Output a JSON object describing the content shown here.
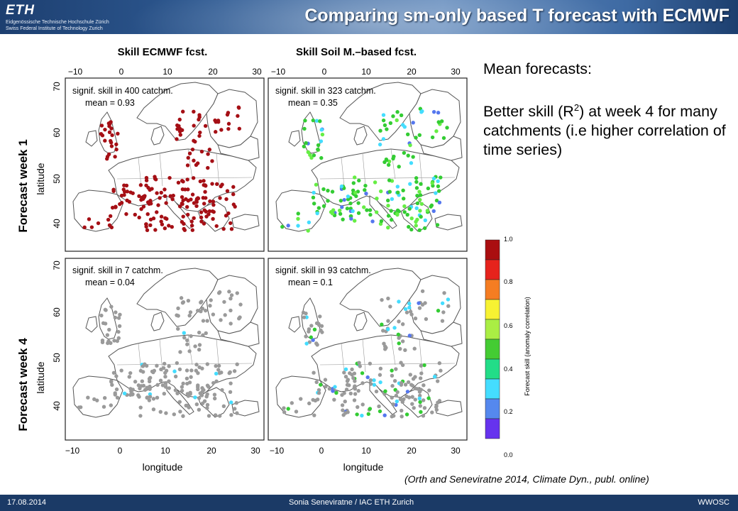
{
  "header": {
    "logo_mark": "ETH",
    "logo_line1": "Eidgenössische Technische Hochschule Zürich",
    "logo_line2": "Swiss Federal Institute of Technology Zurich",
    "title": "Comparing sm-only based T forecast with ECMWF"
  },
  "figure": {
    "col_titles": [
      "Skill ECMWF fcst.",
      "Skill Soil M.–based fcst."
    ],
    "row_titles": [
      "Forecast week 1",
      "Forecast week 4"
    ],
    "ylabel": "latitude",
    "xlabel": "longitude",
    "lon_ticks": [
      "−10",
      "0",
      "10",
      "20",
      "30"
    ],
    "lat_ticks": [
      "70",
      "60",
      "50",
      "40"
    ],
    "panels": [
      {
        "line1": "signif. skill in 400 catchm.",
        "line2": "mean = 0.93"
      },
      {
        "line1": "signif. skill in 323 catchm.",
        "line2": "mean = 0.35"
      },
      {
        "line1": "signif. skill in 7 catchm.",
        "line2": "mean = 0.04"
      },
      {
        "line1": "signif. skill in 93 catchm.",
        "line2": "mean = 0.1"
      }
    ],
    "dot_colors": {
      "dark_red": "#a50f15",
      "grey": "#9a9a9a",
      "green": "#33cc33",
      "light_green": "#66ee44",
      "cyan": "#44ddff",
      "blue": "#5577ee"
    }
  },
  "colorbar": {
    "ticks": [
      "1.0",
      "0.8",
      "0.6",
      "0.4",
      "0.2",
      "0.0"
    ],
    "label": "Forecast skill (anomaly correlation)",
    "colors": [
      "#aa0e10",
      "#e6231c",
      "#f57d22",
      "#f7f232",
      "#aaee44",
      "#44cc33",
      "#22dd88",
      "#44ddff",
      "#5588ee",
      "#6633ee"
    ]
  },
  "notes": {
    "heading": "Mean forecasts:",
    "body_pre": "Better skill (R",
    "body_sup": "2",
    "body_post": ") at week 4 for many catchments (i.e higher correlation of time series)"
  },
  "citation": "(Orth and Seneviratne 2014, Climate Dyn., publ. online)",
  "footer": {
    "date": "17.08.2014",
    "author": "Sonia Seneviratne / IAC ETH Zurich",
    "event": "WWOSC"
  }
}
